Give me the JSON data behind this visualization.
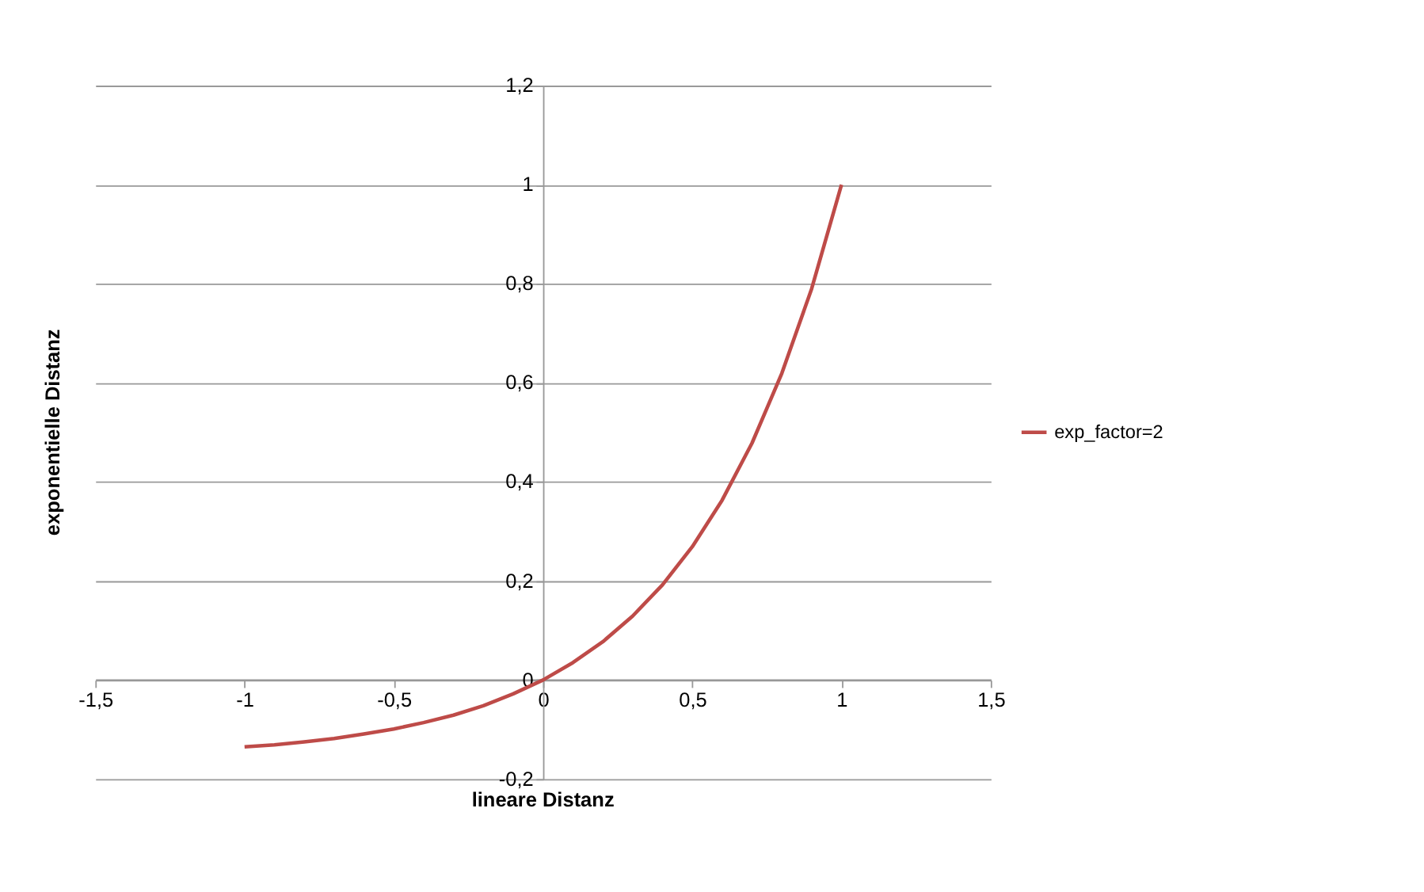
{
  "chart_data": {
    "type": "line",
    "xlabel": "lineare Distanz",
    "ylabel": "exponentielle Distanz",
    "x": [
      -1,
      -0.9,
      -0.8,
      -0.7,
      -0.6,
      -0.5,
      -0.4,
      -0.3,
      -0.2,
      -0.1,
      0,
      0.1,
      0.2,
      0.3,
      0.4,
      0.5,
      0.6,
      0.7,
      0.8,
      0.9,
      1
    ],
    "series": [
      {
        "name": "exp_factor=2",
        "color": "#be4b48",
        "values": [
          -0.135,
          -0.131,
          -0.125,
          -0.118,
          -0.109,
          -0.099,
          -0.086,
          -0.071,
          -0.052,
          -0.028,
          0,
          0.035,
          0.077,
          0.129,
          0.192,
          0.269,
          0.363,
          0.478,
          0.619,
          0.79,
          1
        ]
      }
    ],
    "xlim": [
      -1.5,
      1.5
    ],
    "ylim": [
      -0.2,
      1.2
    ],
    "xticks": [
      {
        "value": -1.5,
        "label": "-1,5"
      },
      -1,
      {
        "value": -0.5,
        "label": "-0,5"
      },
      0,
      {
        "value": 0.5,
        "label": "0,5"
      },
      1,
      {
        "value": 1.5,
        "label": "1,5"
      }
    ],
    "yticks": [
      {
        "value": -0.2,
        "label": "-0,2"
      },
      0,
      {
        "value": 0.2,
        "label": "0,2"
      },
      {
        "value": 0.4,
        "label": "0,4"
      },
      {
        "value": 0.6,
        "label": "0,6"
      },
      {
        "value": 0.8,
        "label": "0,8"
      },
      1,
      {
        "value": 1.2,
        "label": "1,2"
      }
    ],
    "grid": "y",
    "legend": "right",
    "marker": "none",
    "line_style": "solid"
  }
}
